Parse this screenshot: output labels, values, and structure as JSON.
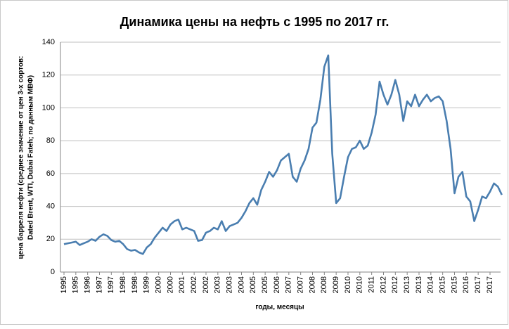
{
  "chart_data": {
    "type": "line",
    "title": "Динамика цены на нефть с 1995 по 2017 гг.",
    "x_label": "годы, месяцы",
    "y_label": [
      "цена барреля нефти (среднее значение от цен 3-х сортов:",
      "Dated Brent, WTI, Dubai Fateh; по данным МВФ)"
    ],
    "categories": [
      "1995",
      null,
      null,
      "1995",
      null,
      null,
      "1996",
      null,
      null,
      "1997",
      null,
      null,
      "1997",
      null,
      null,
      "1998",
      null,
      null,
      "1998",
      null,
      null,
      "1999",
      null,
      null,
      "2000",
      null,
      null,
      "2000",
      null,
      null,
      "2001",
      null,
      null,
      "2002",
      null,
      null,
      "2002",
      null,
      null,
      "2003",
      null,
      null,
      "2003",
      null,
      null,
      "2004",
      null,
      null,
      "2005",
      null,
      null,
      "2005",
      null,
      null,
      "2006",
      null,
      null,
      "2007",
      null,
      null,
      "2007",
      null,
      null,
      "2008",
      null,
      null,
      "2008",
      null,
      null,
      "2009",
      null,
      null,
      "2010",
      null,
      null,
      "2010",
      null,
      null,
      "2011",
      null,
      null,
      "2012",
      null,
      null,
      "2012",
      null,
      null,
      "2013",
      null,
      null,
      "2013",
      null,
      null,
      "2014",
      null,
      null,
      "2015",
      null,
      null,
      "2015",
      null,
      null,
      "2016",
      null,
      null,
      "2017",
      null,
      null,
      "2017",
      null,
      null,
      null
    ],
    "series": [
      {
        "name": "цена",
        "color": "#4a7eb0",
        "values": [
          17,
          17.5,
          18,
          18.5,
          16.5,
          17.5,
          18.5,
          20,
          19,
          21.5,
          23,
          22,
          19.5,
          18.5,
          19,
          17,
          14,
          13,
          13.5,
          12,
          11,
          15,
          17,
          21,
          24,
          27,
          25,
          29,
          31,
          32,
          26,
          27,
          26,
          25,
          19,
          19.5,
          24,
          25,
          27,
          26,
          31,
          25,
          28,
          29,
          30,
          33,
          37,
          42,
          45,
          41,
          50,
          55,
          61,
          58,
          62,
          68,
          70,
          72,
          58,
          55,
          63,
          68,
          75,
          88,
          91,
          105,
          125,
          132,
          72,
          42,
          45,
          58,
          70,
          75,
          76,
          80,
          75,
          77,
          85,
          96,
          116,
          108,
          102,
          108,
          117,
          108,
          92,
          104,
          101,
          108,
          101,
          105,
          108,
          104,
          106,
          107,
          104,
          92,
          75,
          48,
          58,
          61,
          46,
          43,
          31,
          38,
          46,
          45,
          49,
          54,
          52,
          47
        ]
      }
    ],
    "ylim": [
      0,
      140
    ],
    "yticks": [
      0,
      20,
      40,
      60,
      80,
      100,
      120,
      140
    ],
    "grid": true
  }
}
